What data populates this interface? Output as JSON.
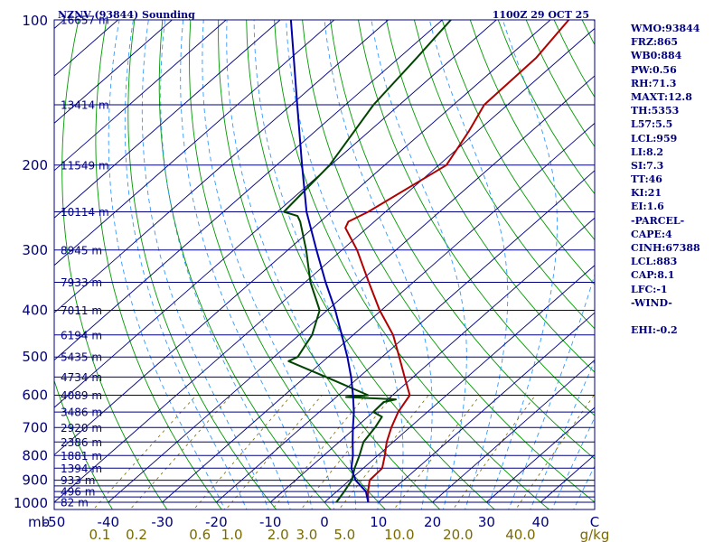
{
  "header": {
    "station": "NZNV (93844) Sounding",
    "time": "1100Z 29 OCT 25"
  },
  "stats": [
    "WMO:93844",
    "FRZ:865",
    "WB0:884",
    "PW:0.56",
    "RH:71.3",
    "MAXT:12.8",
    "TH:5353",
    "L57:5.5",
    "LCL:959",
    "LI:8.2",
    "SI:7.3",
    "TT:46",
    "KI:21",
    "EI:1.6",
    "-PARCEL-",
    "CAPE:4",
    "CINH:67388",
    "LCL:883",
    "CAP:8.1",
    "LFC:-1",
    "-WIND-",
    "",
    "EHI:-0.2"
  ],
  "colors": {
    "background": "#ffffff",
    "frame": "#000080",
    "isobar": "#000080",
    "isotherm": "#000080",
    "dry_adiabat": "#009900",
    "moist_adiabat": "#3399ff",
    "mixing_ratio": "#7a6a00",
    "temperature": "#b00000",
    "dewpoint": "#004400",
    "parcel": "#0000aa"
  },
  "chart_data": {
    "type": "line",
    "skew": "skew-T log-p",
    "ylim": [
      1000,
      100
    ],
    "xlim": [
      -50,
      50
    ],
    "pressure_ticks": [
      "100",
      "200",
      "300",
      "400",
      "500",
      "600",
      "700",
      "800",
      "900",
      "1000"
    ],
    "pressure_unit": "mb",
    "temperature_ticks": [
      "-50",
      "-40",
      "-30",
      "-20",
      "-10",
      "0",
      "10",
      "20",
      "30",
      "40"
    ],
    "temperature_unit": "C",
    "mixing_ratio_ticks": [
      "0.1",
      "0.2",
      "0.6",
      "1.0",
      "2.0",
      "3.0",
      "5.0",
      "10.0",
      "20.0",
      "40.0"
    ],
    "mixing_ratio_unit": "g/kg",
    "isobar_levels": [
      1000,
      975,
      950,
      925,
      900,
      850,
      800,
      750,
      700,
      650,
      600,
      550,
      500,
      450,
      400,
      350,
      300,
      250,
      200,
      150,
      100
    ],
    "height_labels": [
      {
        "p": 100,
        "label": "16657 m"
      },
      {
        "p": 150,
        "label": "13414 m"
      },
      {
        "p": 200,
        "label": "11549 m"
      },
      {
        "p": 250,
        "label": "10114 m"
      },
      {
        "p": 300,
        "label": "8945 m"
      },
      {
        "p": 350,
        "label": "7933 m"
      },
      {
        "p": 400,
        "label": "7011 m"
      },
      {
        "p": 450,
        "label": "6194 m"
      },
      {
        "p": 500,
        "label": "5435 m"
      },
      {
        "p": 550,
        "label": "4734 m"
      },
      {
        "p": 600,
        "label": "4089 m"
      },
      {
        "p": 650,
        "label": "3486 m"
      },
      {
        "p": 700,
        "label": "2920 m"
      },
      {
        "p": 750,
        "label": "2386 m"
      },
      {
        "p": 800,
        "label": "1881 m"
      },
      {
        "p": 850,
        "label": "1394 m"
      },
      {
        "p": 900,
        "label": "933 m"
      },
      {
        "p": 950,
        "label": "496 m"
      },
      {
        "p": 1000,
        "label": "82 m"
      }
    ],
    "series": [
      {
        "id": "temperature",
        "points": [
          {
            "p": 1000,
            "t": 8.1
          },
          {
            "p": 950,
            "t": 5.8
          },
          {
            "p": 900,
            "t": 3.7
          },
          {
            "p": 850,
            "t": 3.5
          },
          {
            "p": 800,
            "t": 1.3
          },
          {
            "p": 750,
            "t": -1.2
          },
          {
            "p": 700,
            "t": -3.4
          },
          {
            "p": 650,
            "t": -5.4
          },
          {
            "p": 600,
            "t": -6.8
          },
          {
            "p": 550,
            "t": -11.6
          },
          {
            "p": 500,
            "t": -16.8
          },
          {
            "p": 450,
            "t": -22.6
          },
          {
            "p": 400,
            "t": -30.3
          },
          {
            "p": 350,
            "t": -38.2
          },
          {
            "p": 300,
            "t": -47.2
          },
          {
            "p": 270,
            "t": -54.0
          },
          {
            "p": 262,
            "t": -54.8
          },
          {
            "p": 250,
            "t": -53.2
          },
          {
            "p": 200,
            "t": -48.6
          },
          {
            "p": 170,
            "t": -51.6
          },
          {
            "p": 150,
            "t": -54.3
          },
          {
            "p": 120,
            "t": -54.6
          },
          {
            "p": 100,
            "t": -56.6
          }
        ]
      },
      {
        "id": "dewpoint",
        "points": [
          {
            "p": 1000,
            "t": 2.2
          },
          {
            "p": 950,
            "t": 1.4
          },
          {
            "p": 900,
            "t": 0.4
          },
          {
            "p": 850,
            "t": -1.6
          },
          {
            "p": 800,
            "t": -3.4
          },
          {
            "p": 750,
            "t": -5.5
          },
          {
            "p": 700,
            "t": -6.4
          },
          {
            "p": 665,
            "t": -7.4
          },
          {
            "p": 650,
            "t": -10.0
          },
          {
            "p": 620,
            "t": -10.2
          },
          {
            "p": 612,
            "t": -8.5
          },
          {
            "p": 605,
            "t": -18.2
          },
          {
            "p": 600,
            "t": -14.5
          },
          {
            "p": 550,
            "t": -26.1
          },
          {
            "p": 510,
            "t": -36.4
          },
          {
            "p": 500,
            "t": -35.6
          },
          {
            "p": 450,
            "t": -37.6
          },
          {
            "p": 400,
            "t": -41.4
          },
          {
            "p": 350,
            "t": -49.0
          },
          {
            "p": 300,
            "t": -56.6
          },
          {
            "p": 262,
            "t": -63.7
          },
          {
            "p": 255,
            "t": -65.4
          },
          {
            "p": 250,
            "t": -68.8
          },
          {
            "p": 200,
            "t": -70.2
          },
          {
            "p": 150,
            "t": -74.8
          },
          {
            "p": 120,
            "t": -76.7
          },
          {
            "p": 100,
            "t": -78.4
          }
        ]
      },
      {
        "id": "parcel",
        "points": [
          {
            "p": 1000,
            "t": 8.1
          },
          {
            "p": 950,
            "t": 5.4
          },
          {
            "p": 900,
            "t": 1.1
          },
          {
            "p": 850,
            "t": -2.2
          },
          {
            "p": 800,
            "t": -4.6
          },
          {
            "p": 750,
            "t": -7.5
          },
          {
            "p": 700,
            "t": -10.5
          },
          {
            "p": 650,
            "t": -13.6
          },
          {
            "p": 600,
            "t": -17.3
          },
          {
            "p": 550,
            "t": -21.5
          },
          {
            "p": 500,
            "t": -26.4
          },
          {
            "p": 450,
            "t": -32.1
          },
          {
            "p": 400,
            "t": -38.5
          },
          {
            "p": 350,
            "t": -46.2
          },
          {
            "p": 300,
            "t": -54.7
          },
          {
            "p": 250,
            "t": -64.6
          },
          {
            "p": 200,
            "t": -75.3
          },
          {
            "p": 150,
            "t": -88.9
          },
          {
            "p": 100,
            "t": -108.0
          }
        ]
      }
    ]
  }
}
